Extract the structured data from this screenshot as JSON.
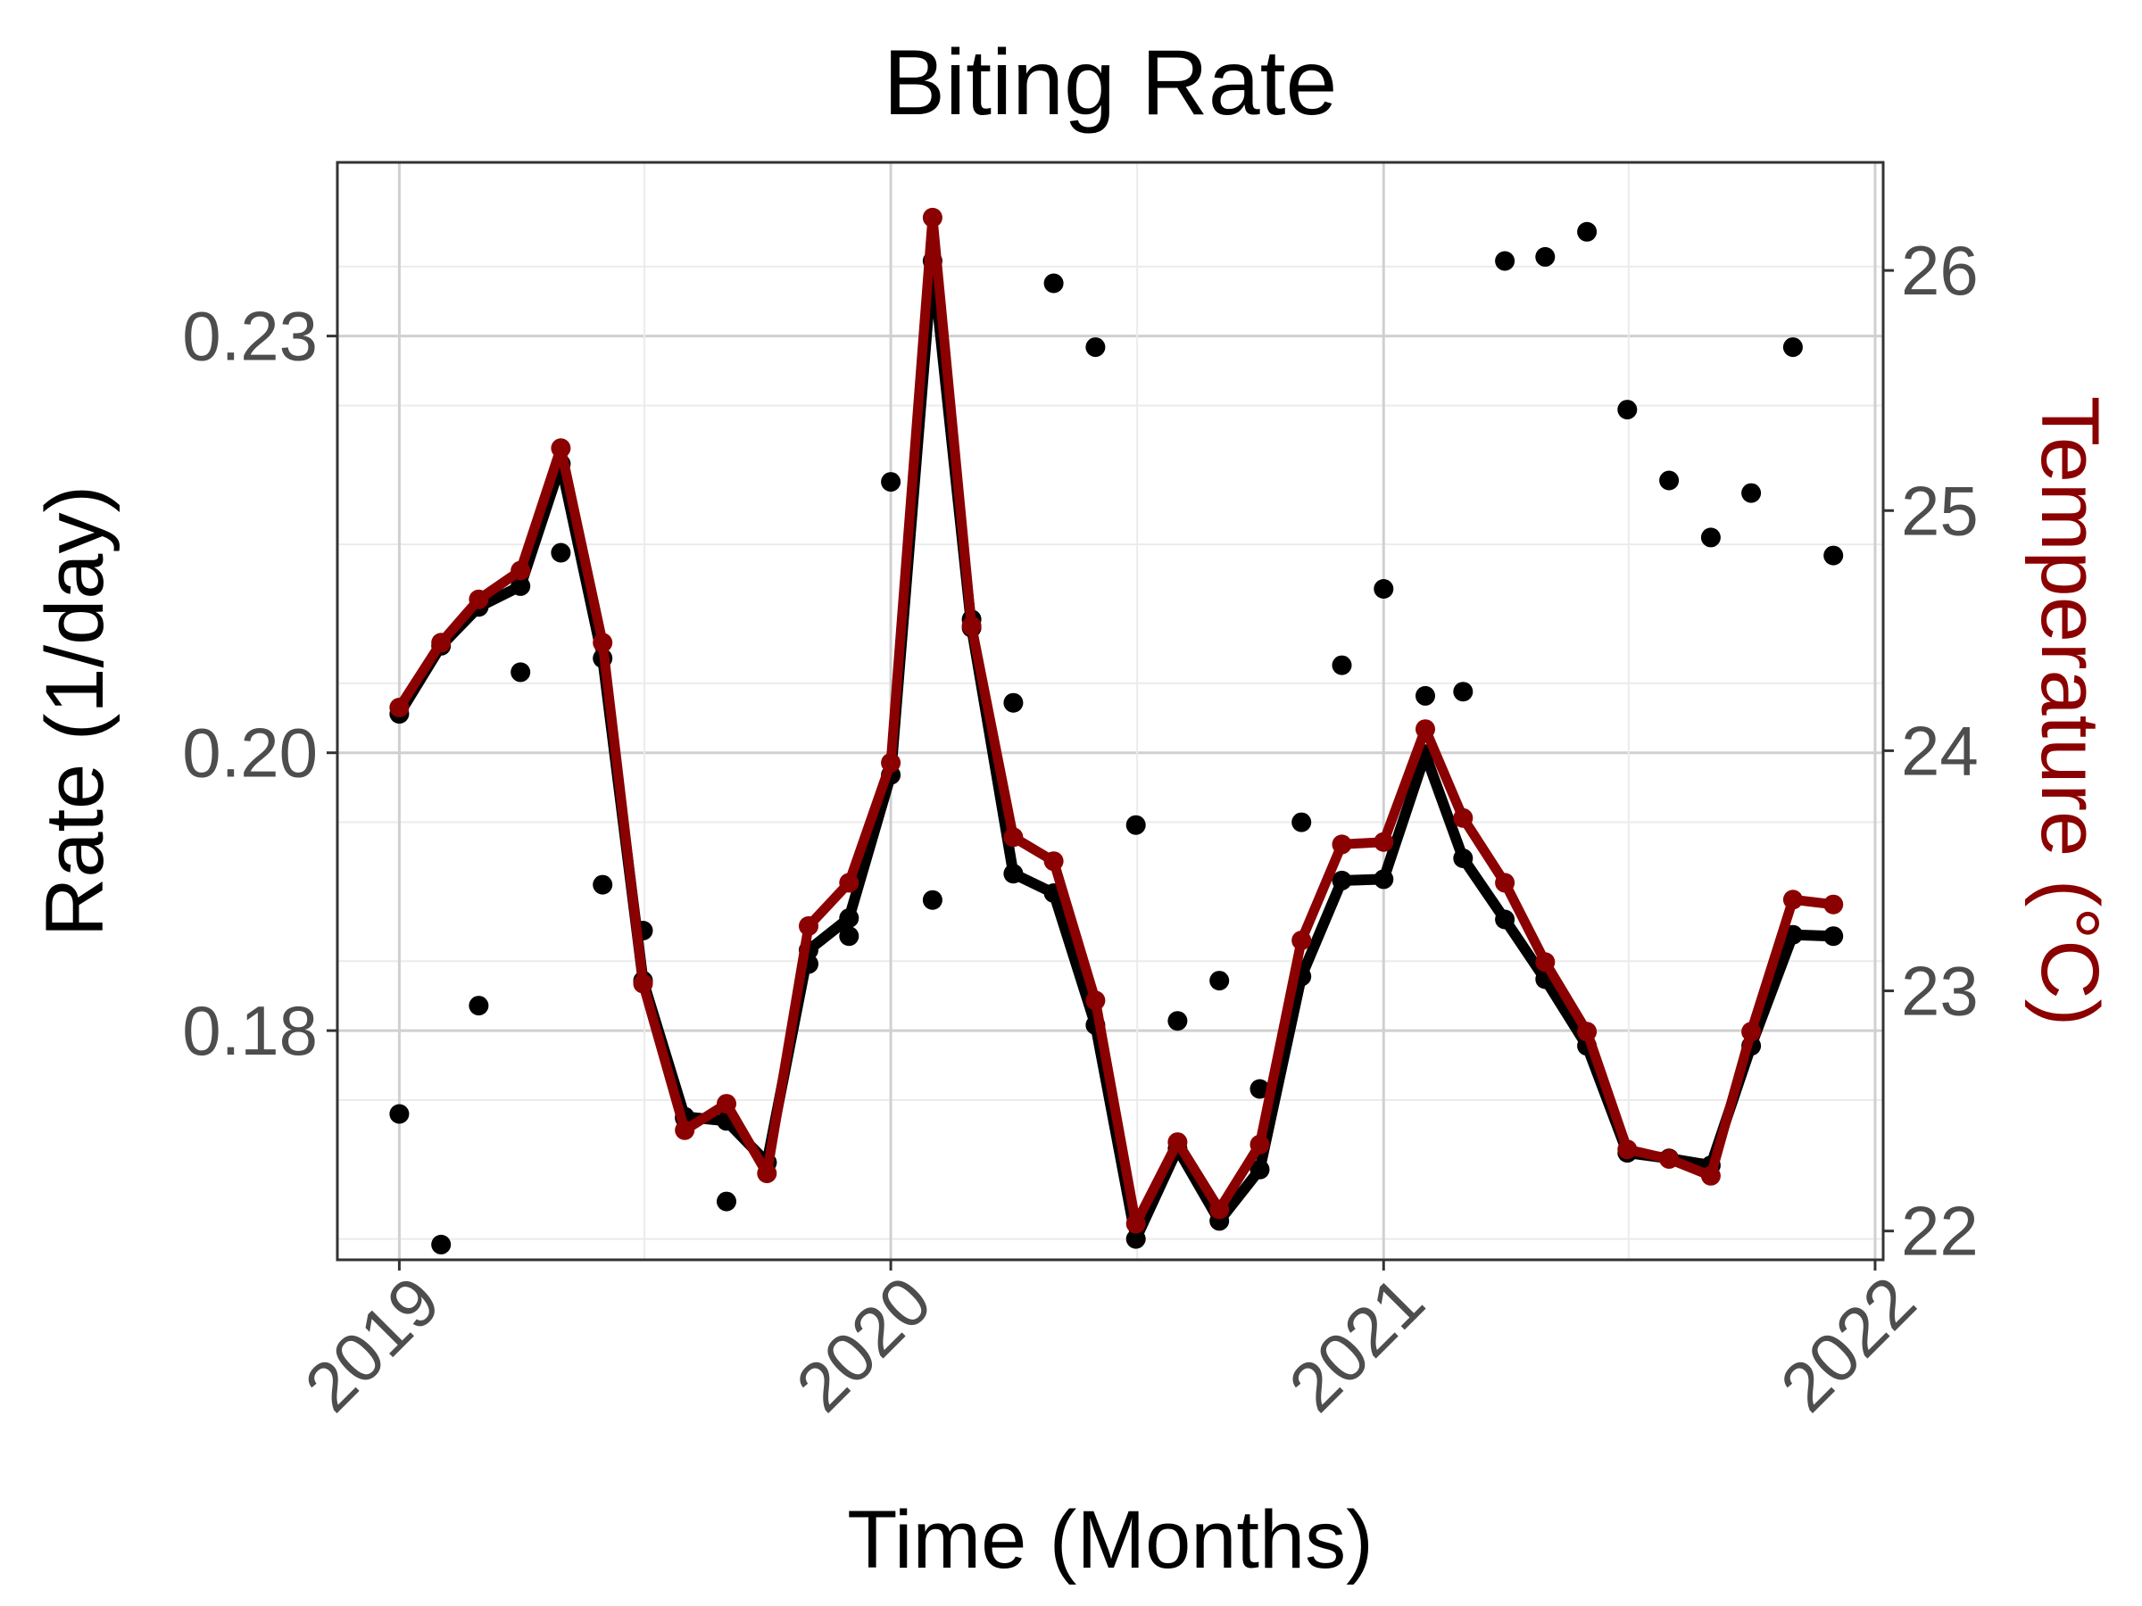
{
  "chart_data": {
    "type": "line",
    "title": "Biting Rate",
    "xlabel": "Time (Months)",
    "ylabel": "Rate (1/day)",
    "ylabel_right": "Temperature (°C)",
    "x_ticks": [
      "2019",
      "2020",
      "2021",
      "2022"
    ],
    "y_ticks": [
      "0.18",
      "0.20",
      "0.23"
    ],
    "y_ticks_right": [
      "22",
      "23",
      "24",
      "25",
      "26"
    ],
    "xlim": [
      "2018-11-16",
      "2022-01-07"
    ],
    "ylim": [
      0.1635,
      0.2425
    ],
    "ylim_right": [
      21.88,
      26.45
    ],
    "grid": true,
    "colors": {
      "rate": "#000000",
      "temperature": "#8b0000"
    },
    "series": [
      {
        "style": "points",
        "color": "#000000",
        "points": [
          [
            "2019-01-01",
            0.174
          ],
          [
            "2019-02-01",
            0.1646
          ],
          [
            "2019-03-01",
            0.1818
          ],
          [
            "2019-04-01",
            0.2058
          ],
          [
            "2019-05-01",
            0.2144
          ],
          [
            "2019-06-01",
            0.1905
          ],
          [
            "2019-07-01",
            0.1872
          ],
          [
            "2019-08-01",
            0.1737
          ],
          [
            "2019-09-01",
            0.1677
          ],
          [
            "2019-10-01",
            0.1705
          ],
          [
            "2019-11-01",
            0.1848
          ],
          [
            "2019-12-01",
            0.1868
          ],
          [
            "2020-01-01",
            0.2195
          ],
          [
            "2020-02-01",
            0.1894
          ],
          [
            "2020-03-01",
            0.2096
          ],
          [
            "2020-04-01",
            0.2036
          ],
          [
            "2020-05-01",
            0.2338
          ],
          [
            "2020-06-01",
            0.2292
          ],
          [
            "2020-07-01",
            0.1948
          ],
          [
            "2020-08-01",
            0.1807
          ],
          [
            "2020-09-01",
            0.1836
          ],
          [
            "2020-10-01",
            0.1758
          ],
          [
            "2020-11-01",
            0.195
          ],
          [
            "2020-12-01",
            0.2063
          ],
          [
            "2021-01-01",
            0.2118
          ],
          [
            "2021-02-01",
            0.2041
          ],
          [
            "2021-03-01",
            0.2044
          ],
          [
            "2021-04-01",
            0.2354
          ],
          [
            "2021-05-01",
            0.2357
          ],
          [
            "2021-06-01",
            0.2375
          ],
          [
            "2021-07-01",
            0.2247
          ],
          [
            "2021-08-01",
            0.2196
          ],
          [
            "2021-09-01",
            0.2155
          ],
          [
            "2021-10-01",
            0.2187
          ],
          [
            "2021-11-01",
            0.2292
          ],
          [
            "2021-12-01",
            0.2142
          ]
        ]
      },
      {
        "style": "line+points",
        "axis": "left",
        "color": "#000000",
        "points": [
          [
            "2019-01-01",
            0.2028
          ],
          [
            "2019-02-01",
            0.2077
          ],
          [
            "2019-03-01",
            0.2105
          ],
          [
            "2019-04-01",
            0.212
          ],
          [
            "2019-05-01",
            0.2208
          ],
          [
            "2019-06-01",
            0.2068
          ],
          [
            "2019-07-01",
            0.1836
          ],
          [
            "2019-08-01",
            0.1738
          ],
          [
            "2019-09-01",
            0.1735
          ],
          [
            "2019-10-01",
            0.1705
          ],
          [
            "2019-11-01",
            0.1858
          ],
          [
            "2019-12-01",
            0.1881
          ],
          [
            "2020-01-01",
            0.1984
          ],
          [
            "2020-02-01",
            0.2354
          ],
          [
            "2020-03-01",
            0.209
          ],
          [
            "2020-04-01",
            0.1913
          ],
          [
            "2020-05-01",
            0.1899
          ],
          [
            "2020-06-01",
            0.1804
          ],
          [
            "2020-07-01",
            0.165
          ],
          [
            "2020-08-01",
            0.1715
          ],
          [
            "2020-09-01",
            0.1663
          ],
          [
            "2020-10-01",
            0.17
          ],
          [
            "2020-11-01",
            0.1839
          ],
          [
            "2020-12-01",
            0.1908
          ],
          [
            "2021-01-01",
            0.1909
          ],
          [
            "2021-02-01",
            0.1999
          ],
          [
            "2021-03-01",
            0.1924
          ],
          [
            "2021-04-01",
            0.188
          ],
          [
            "2021-05-01",
            0.1837
          ],
          [
            "2021-06-01",
            0.1789
          ],
          [
            "2021-07-01",
            0.1712
          ],
          [
            "2021-08-01",
            0.1708
          ],
          [
            "2021-09-01",
            0.1703
          ],
          [
            "2021-10-01",
            0.1789
          ],
          [
            "2021-11-01",
            0.1869
          ],
          [
            "2021-12-01",
            0.1868
          ]
        ]
      },
      {
        "style": "line+points",
        "axis": "right",
        "color": "#8b0000",
        "points": [
          [
            "2019-01-01",
            24.18
          ],
          [
            "2019-02-01",
            24.45
          ],
          [
            "2019-03-01",
            24.63
          ],
          [
            "2019-04-01",
            24.75
          ],
          [
            "2019-05-01",
            25.26
          ],
          [
            "2019-06-01",
            24.45
          ],
          [
            "2019-07-01",
            23.03
          ],
          [
            "2019-08-01",
            22.42
          ],
          [
            "2019-09-01",
            22.53
          ],
          [
            "2019-10-01",
            22.24
          ],
          [
            "2019-11-01",
            23.27
          ],
          [
            "2019-12-01",
            23.45
          ],
          [
            "2020-01-01",
            23.95
          ],
          [
            "2020-02-01",
            26.22
          ],
          [
            "2020-03-01",
            24.52
          ],
          [
            "2020-04-01",
            23.64
          ],
          [
            "2020-05-01",
            23.54
          ],
          [
            "2020-06-01",
            22.96
          ],
          [
            "2020-07-01",
            22.03
          ],
          [
            "2020-08-01",
            22.37
          ],
          [
            "2020-09-01",
            22.09
          ],
          [
            "2020-10-01",
            22.36
          ],
          [
            "2020-11-01",
            23.21
          ],
          [
            "2020-12-01",
            23.61
          ],
          [
            "2021-01-01",
            23.62
          ],
          [
            "2021-02-01",
            24.09
          ],
          [
            "2021-03-01",
            23.72
          ],
          [
            "2021-04-01",
            23.45
          ],
          [
            "2021-05-01",
            23.12
          ],
          [
            "2021-06-01",
            22.83
          ],
          [
            "2021-07-01",
            22.34
          ],
          [
            "2021-08-01",
            22.3
          ],
          [
            "2021-09-01",
            22.23
          ],
          [
            "2021-10-01",
            22.83
          ],
          [
            "2021-11-01",
            23.38
          ],
          [
            "2021-12-01",
            23.36
          ]
        ]
      }
    ]
  }
}
